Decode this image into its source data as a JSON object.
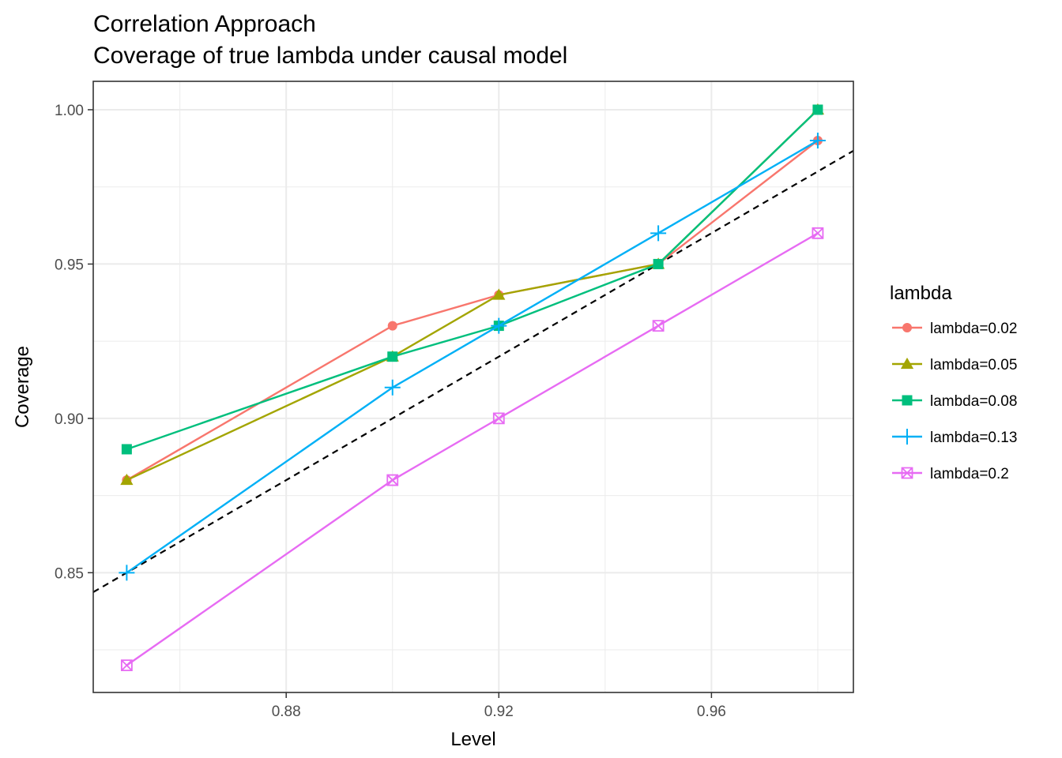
{
  "chart_data": {
    "type": "line",
    "title": "Correlation Approach",
    "subtitle": "Coverage of true lambda under causal model",
    "xlabel": "Level",
    "ylabel": "Coverage",
    "xlim": [
      0.8437,
      0.9867
    ],
    "ylim": [
      0.8112,
      1.0092
    ],
    "x_ticks": [
      0.88,
      0.92,
      0.96
    ],
    "x_tick_labels": [
      "0.88",
      "0.92",
      "0.96"
    ],
    "y_ticks": [
      0.85,
      0.9,
      0.95,
      1.0
    ],
    "y_tick_labels": [
      "0.85",
      "0.90",
      "0.95",
      "1.00"
    ],
    "grid": true,
    "legend_position": "right",
    "legend_title": "lambda",
    "x": [
      0.85,
      0.9,
      0.92,
      0.95,
      0.98
    ],
    "series": [
      {
        "name": "lambda=0.02",
        "color": "#F8766D",
        "marker": "circle",
        "values": [
          0.88,
          0.93,
          0.94,
          0.95,
          0.99
        ]
      },
      {
        "name": "lambda=0.05",
        "color": "#A3A500",
        "marker": "triangle",
        "values": [
          0.88,
          0.92,
          0.94,
          0.95,
          1.0
        ]
      },
      {
        "name": "lambda=0.08",
        "color": "#00BF7D",
        "marker": "square",
        "values": [
          0.89,
          0.92,
          0.93,
          0.95,
          1.0
        ]
      },
      {
        "name": "lambda=0.13",
        "color": "#00B0F6",
        "marker": "plus",
        "values": [
          0.85,
          0.91,
          0.93,
          0.96,
          0.99
        ]
      },
      {
        "name": "lambda=0.2",
        "color": "#E76BF3",
        "marker": "square-x",
        "values": [
          0.82,
          0.88,
          0.9,
          0.93,
          0.96
        ]
      }
    ],
    "reference_line": {
      "type": "identity",
      "style": "dashed",
      "color": "#000000"
    }
  }
}
